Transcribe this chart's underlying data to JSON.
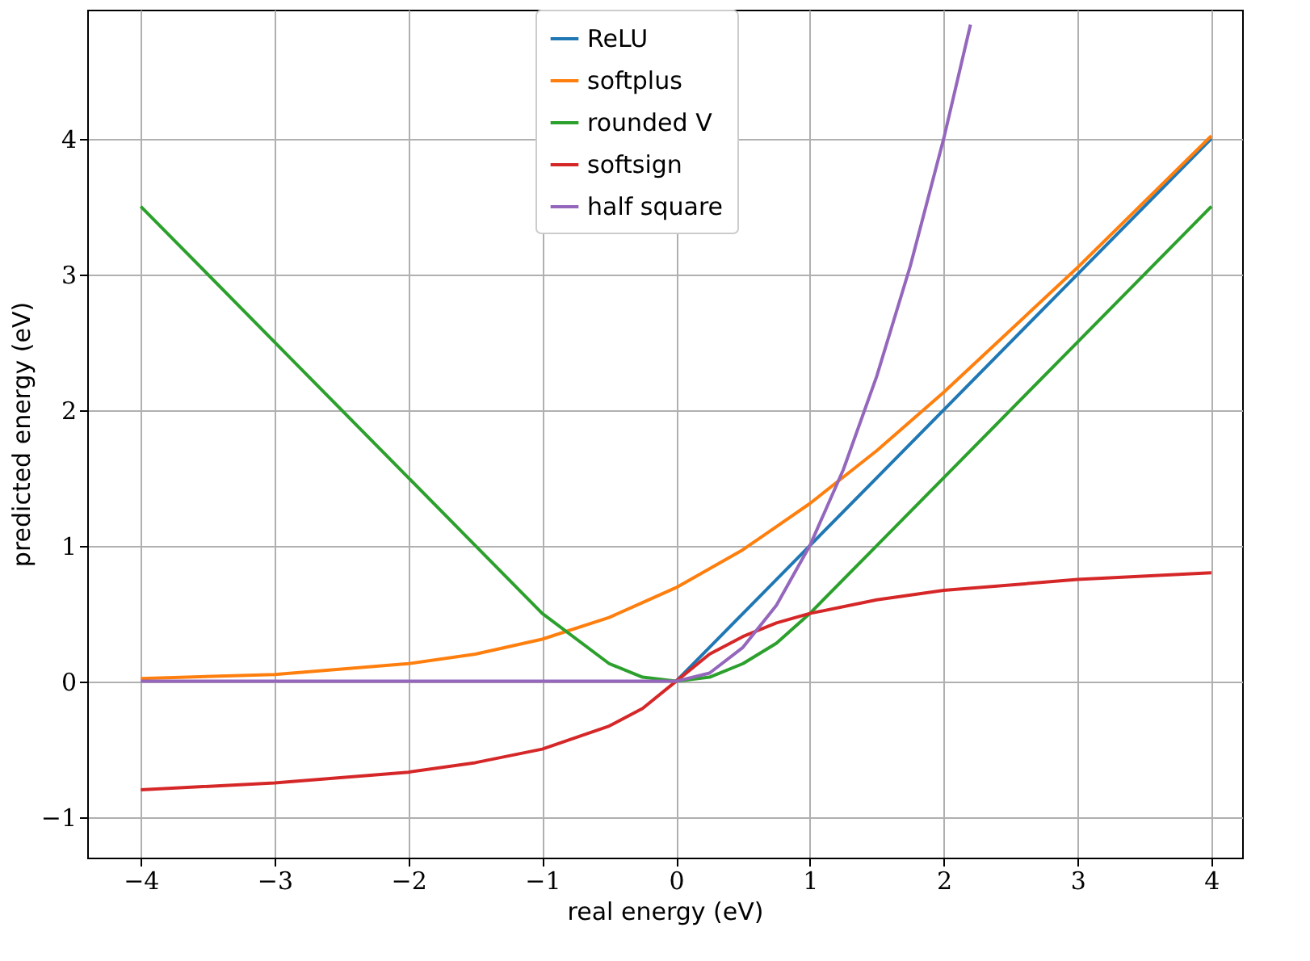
{
  "chart_data": {
    "type": "line",
    "xlabel": "real energy (eV)",
    "ylabel": "predicted energy (eV)",
    "x": [
      -4,
      -3,
      -2,
      -1.5,
      -1,
      -0.5,
      -0.25,
      0,
      0.25,
      0.5,
      0.75,
      1,
      1.5,
      2,
      3,
      4
    ],
    "series": [
      {
        "name": "ReLU",
        "color": "#1f77b4",
        "values": [
          null,
          null,
          null,
          null,
          null,
          null,
          null,
          0,
          0.25,
          0.5,
          0.75,
          1,
          1.5,
          2,
          3,
          4
        ]
      },
      {
        "name": "softplus",
        "color": "#ff7f0e",
        "values": [
          0.02,
          0.05,
          0.13,
          0.2,
          0.31,
          0.47,
          0.58,
          0.69,
          0.83,
          0.97,
          1.14,
          1.31,
          1.7,
          2.13,
          3.05,
          4.02
        ]
      },
      {
        "name": "rounded V",
        "color": "#2ca02c",
        "values": [
          3.5,
          2.5,
          1.5,
          1.0,
          0.5,
          0.13,
          0.03,
          0,
          0.03,
          0.13,
          0.28,
          0.5,
          1.0,
          1.5,
          2.5,
          3.5
        ]
      },
      {
        "name": "softsign",
        "color": "#d62728",
        "values": [
          -0.8,
          -0.75,
          -0.67,
          -0.6,
          -0.5,
          -0.33,
          -0.2,
          0,
          0.2,
          0.33,
          0.43,
          0.5,
          0.6,
          0.67,
          0.75,
          0.8
        ]
      },
      {
        "name": "half square",
        "color": "#9467bd",
        "x": [
          -4,
          -2,
          0,
          0.25,
          0.5,
          0.75,
          1,
          1.25,
          1.5,
          1.75,
          2,
          2.2
        ],
        "values": [
          0,
          0,
          0,
          0.06,
          0.25,
          0.56,
          1,
          1.56,
          2.25,
          3.06,
          4,
          4.84
        ]
      }
    ],
    "xlim": [
      -4.4,
      4.23
    ],
    "ylim": [
      -1.3,
      4.95
    ],
    "xticks": [
      -4,
      -3,
      -2,
      -1,
      0,
      1,
      2,
      3,
      4
    ],
    "yticks": [
      -1,
      0,
      1,
      2,
      3,
      4
    ],
    "grid": true,
    "legend": "top",
    "marker": "none",
    "line_style": "solid"
  }
}
